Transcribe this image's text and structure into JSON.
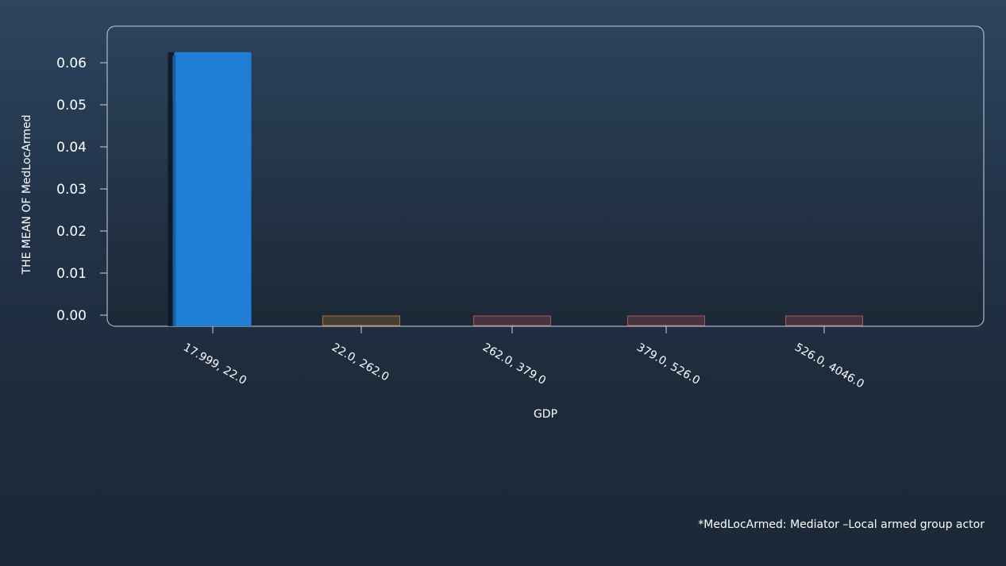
{
  "chart_data": {
    "type": "bar",
    "categories": [
      "17.999, 22.0",
      "22.0, 262.0",
      "262.0, 379.0",
      "379.0, 526.0",
      "526.0, 4046.0"
    ],
    "values": [
      0.0625,
      0.0,
      0.0,
      0.0,
      0.0
    ],
    "xlabel": "GDP",
    "ylabel": "THE MEAN OF MedLocArmed",
    "ylim": [
      0,
      0.06
    ],
    "yticks": [
      "0.00",
      "0.01",
      "0.02",
      "0.03",
      "0.04",
      "0.05",
      "0.06"
    ],
    "grid": false,
    "colors": {
      "bars": [
        "#1f7fd6",
        "#ff9f1c",
        "#ff6f6f",
        "#ff6f6f",
        "#ff6f6f"
      ],
      "plot_border": "#c8d2dc",
      "text": "#ffffff"
    }
  },
  "footnote": "*MedLocArmed: Mediator –Local armed group actor"
}
